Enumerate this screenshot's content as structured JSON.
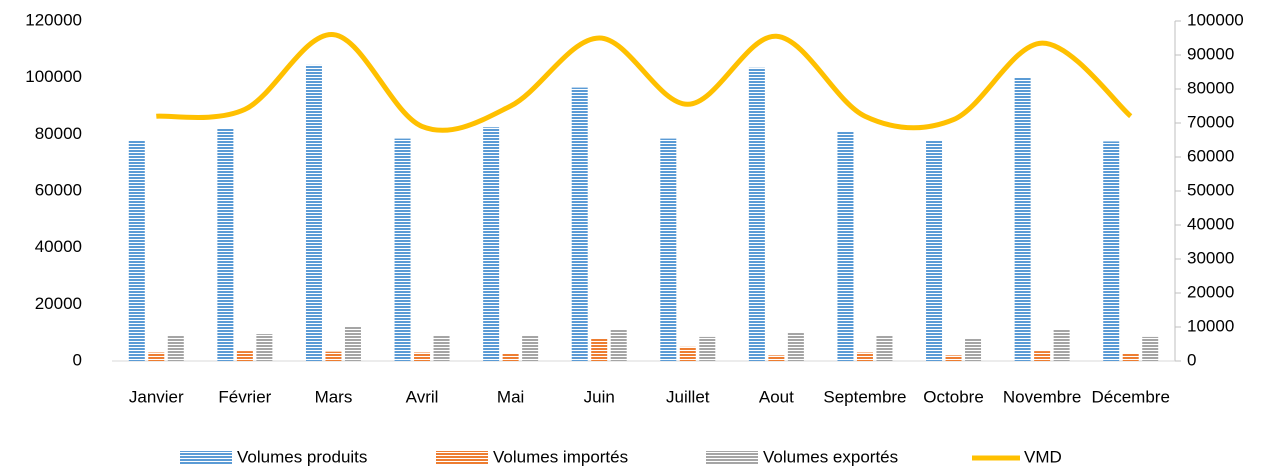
{
  "chart_data": {
    "type": "bar",
    "categories": [
      "Janvier",
      "Février",
      "Mars",
      "Avril",
      "Mai",
      "Juin",
      "Juillet",
      "Aout",
      "Septembre",
      "Octobre",
      "Novembre",
      "Décembre"
    ],
    "series": [
      {
        "name": "Volumes produits",
        "color": "#5b9bd5",
        "values": [
          78000,
          82000,
          104500,
          78500,
          82500,
          96500,
          78500,
          103500,
          81000,
          78000,
          100000,
          77500
        ]
      },
      {
        "name": "Volumes importés",
        "color": "#ed7d31",
        "values": [
          3000,
          3500,
          3300,
          3000,
          2500,
          8000,
          5000,
          2000,
          3000,
          2000,
          3500,
          2500
        ]
      },
      {
        "name": "Volumes exportés",
        "color": "#a5a5a5",
        "values": [
          9000,
          9500,
          12000,
          9000,
          9000,
          11000,
          8500,
          10000,
          9000,
          8000,
          11000,
          8500
        ]
      },
      {
        "name": "VMD",
        "color": "#ffc000",
        "type": "line",
        "axis": "y2",
        "values": [
          72000,
          74000,
          96000,
          69000,
          75000,
          95000,
          75500,
          95500,
          72000,
          71000,
          93500,
          72000
        ]
      }
    ],
    "ylim": [
      0,
      120000
    ],
    "yticks": [
      0,
      20000,
      40000,
      60000,
      80000,
      100000,
      120000
    ],
    "y2lim": [
      0,
      100000
    ],
    "y2ticks": [
      0,
      10000,
      20000,
      30000,
      40000,
      50000,
      60000,
      70000,
      80000,
      90000,
      100000
    ],
    "legend": "bottom"
  }
}
